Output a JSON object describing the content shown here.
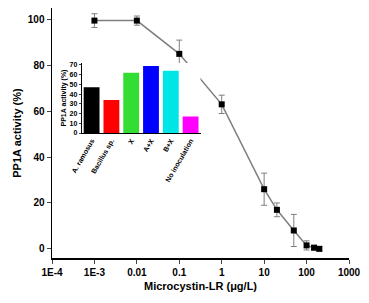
{
  "chart_data": [
    {
      "type": "line",
      "x_label": "Microcystin-LR (μg/L)",
      "y_label": "PP1A activity (%)",
      "x": [
        0.001,
        0.01,
        0.1,
        1,
        10,
        20,
        50,
        100,
        150,
        200
      ],
      "values": [
        99.5,
        99.5,
        85,
        63,
        26,
        17,
        8,
        1.5,
        0.5,
        0
      ],
      "errors": [
        3,
        2,
        6,
        4,
        7,
        3,
        7,
        2,
        1,
        1
      ],
      "log": "x",
      "xlim": [
        0.0001,
        1000
      ],
      "xticks": [
        {
          "value": 0.0001,
          "label": "1E-4"
        },
        {
          "value": 0.001,
          "label": "1E-3"
        },
        0.01,
        0.1,
        1,
        10,
        100,
        1000
      ],
      "ylim": [
        -4,
        105
      ],
      "yticks": [
        0,
        20,
        40,
        60,
        80,
        100
      ],
      "color": "#7f7f7f",
      "marker": "square",
      "grid": false
    },
    {
      "type": "bar",
      "y_label": "PP1A activity (%)",
      "categories": [
        "A. ramosus",
        "Bacillus sp.",
        "X",
        "A+X",
        "B+X",
        "No inoculation"
      ],
      "values": [
        47,
        34,
        62,
        69,
        64,
        17
      ],
      "colors": [
        "#000000",
        "#ff0000",
        "#33dd33",
        "#0000ff",
        "#00e5e5",
        "#ff00ff"
      ],
      "ylim": [
        0,
        72
      ],
      "yticks": [
        0,
        10,
        20,
        30,
        40,
        50,
        60,
        70
      ],
      "grid": false
    }
  ]
}
